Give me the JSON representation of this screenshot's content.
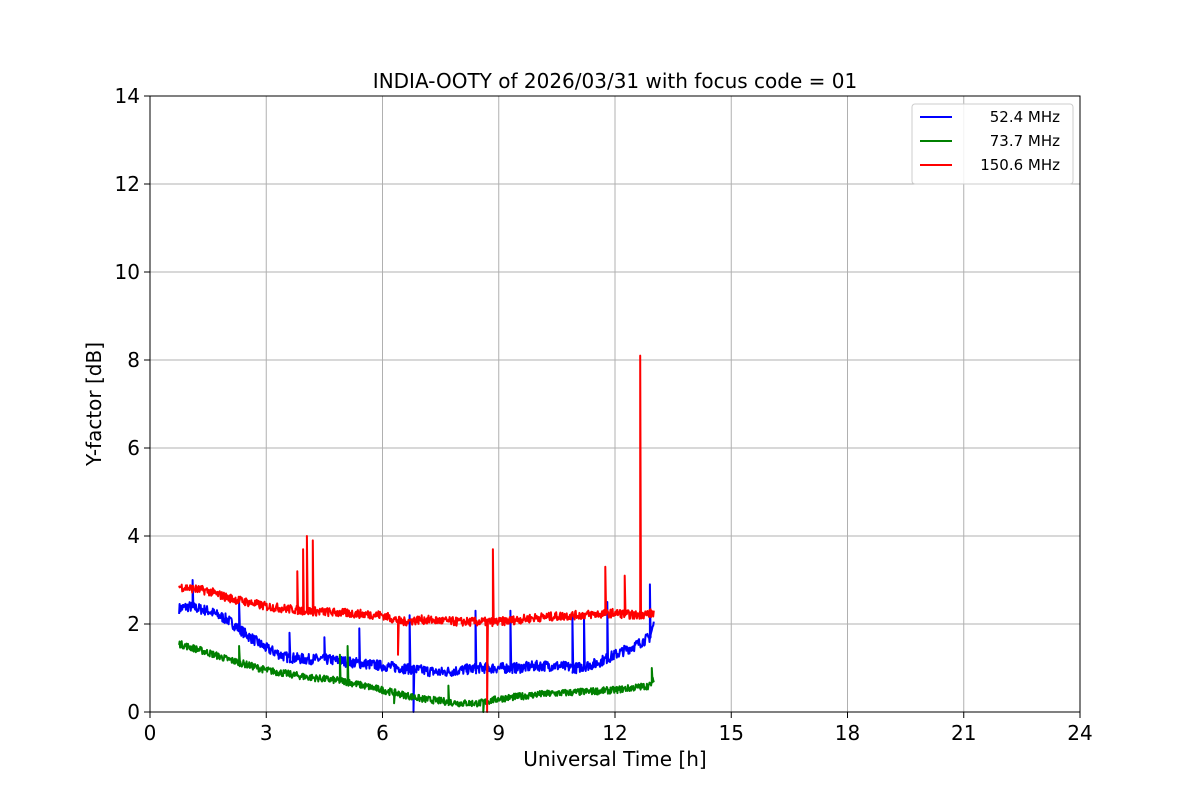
{
  "chart_data": {
    "type": "line",
    "title": "INDIA-OOTY of 2026/03/31 with focus code = 01",
    "xlabel": "Universal Time [h]",
    "ylabel": "Y-factor [dB]",
    "xlim": [
      0,
      24
    ],
    "ylim": [
      0,
      14
    ],
    "xticks": [
      0,
      3,
      6,
      9,
      12,
      15,
      18,
      21,
      24
    ],
    "yticks": [
      0,
      2,
      4,
      6,
      8,
      10,
      12,
      14
    ],
    "grid": true,
    "legend_position": "top-right",
    "series": [
      {
        "name": "52.4 MHz",
        "color": "#0000ff",
        "x": [
          0.75,
          1.0,
          1.5,
          2.0,
          2.5,
          3.0,
          3.5,
          4.0,
          4.5,
          5.0,
          5.5,
          6.0,
          6.5,
          7.0,
          7.5,
          8.0,
          8.5,
          9.0,
          9.5,
          10.0,
          10.5,
          11.0,
          11.5,
          12.0,
          12.5,
          12.9,
          13.0
        ],
        "values": [
          2.35,
          2.4,
          2.3,
          2.1,
          1.75,
          1.45,
          1.25,
          1.2,
          1.2,
          1.15,
          1.1,
          1.05,
          1.0,
          0.95,
          0.9,
          0.95,
          1.0,
          1.0,
          1.0,
          1.05,
          1.05,
          1.0,
          1.1,
          1.3,
          1.5,
          1.7,
          2.0
        ],
        "spikes": [
          [
            1.1,
            3.0
          ],
          [
            2.3,
            2.5
          ],
          [
            3.6,
            1.8
          ],
          [
            4.5,
            1.7
          ],
          [
            5.4,
            1.9
          ],
          [
            6.7,
            2.2
          ],
          [
            6.8,
            0.0
          ],
          [
            8.4,
            2.3
          ],
          [
            9.3,
            2.3
          ],
          [
            10.9,
            2.2
          ],
          [
            11.2,
            2.2
          ],
          [
            11.8,
            2.5
          ],
          [
            12.9,
            2.9
          ]
        ],
        "noise": 0.12
      },
      {
        "name": "73.7 MHz",
        "color": "#008000",
        "x": [
          0.75,
          1.5,
          2.0,
          3.0,
          4.0,
          5.0,
          6.0,
          7.0,
          8.0,
          8.5,
          9.0,
          10.0,
          11.0,
          12.0,
          12.9,
          13.0
        ],
        "values": [
          1.55,
          1.35,
          1.2,
          0.95,
          0.8,
          0.7,
          0.5,
          0.3,
          0.2,
          0.2,
          0.3,
          0.4,
          0.45,
          0.5,
          0.6,
          0.75
        ],
        "spikes": [
          [
            2.3,
            1.5
          ],
          [
            4.9,
            1.3
          ],
          [
            5.1,
            1.5
          ],
          [
            6.3,
            0.2
          ],
          [
            7.7,
            0.6
          ],
          [
            8.6,
            0.0
          ],
          [
            12.95,
            1.0
          ]
        ],
        "noise": 0.08
      },
      {
        "name": "150.6 MHz",
        "color": "#ff0000",
        "x": [
          0.75,
          1.5,
          2.0,
          3.0,
          4.0,
          5.0,
          6.0,
          6.5,
          7.0,
          8.0,
          9.0,
          10.0,
          11.0,
          12.0,
          12.5,
          13.0
        ],
        "values": [
          2.85,
          2.75,
          2.6,
          2.4,
          2.3,
          2.25,
          2.2,
          2.05,
          2.1,
          2.05,
          2.05,
          2.15,
          2.2,
          2.25,
          2.2,
          2.25
        ],
        "spikes": [
          [
            3.8,
            3.2
          ],
          [
            3.95,
            3.7
          ],
          [
            4.05,
            4.0
          ],
          [
            4.2,
            3.9
          ],
          [
            6.4,
            1.3
          ],
          [
            8.7,
            0.0
          ],
          [
            8.85,
            3.7
          ],
          [
            11.75,
            3.3
          ],
          [
            12.25,
            3.1
          ],
          [
            12.65,
            8.1
          ]
        ],
        "noise": 0.1
      }
    ]
  }
}
